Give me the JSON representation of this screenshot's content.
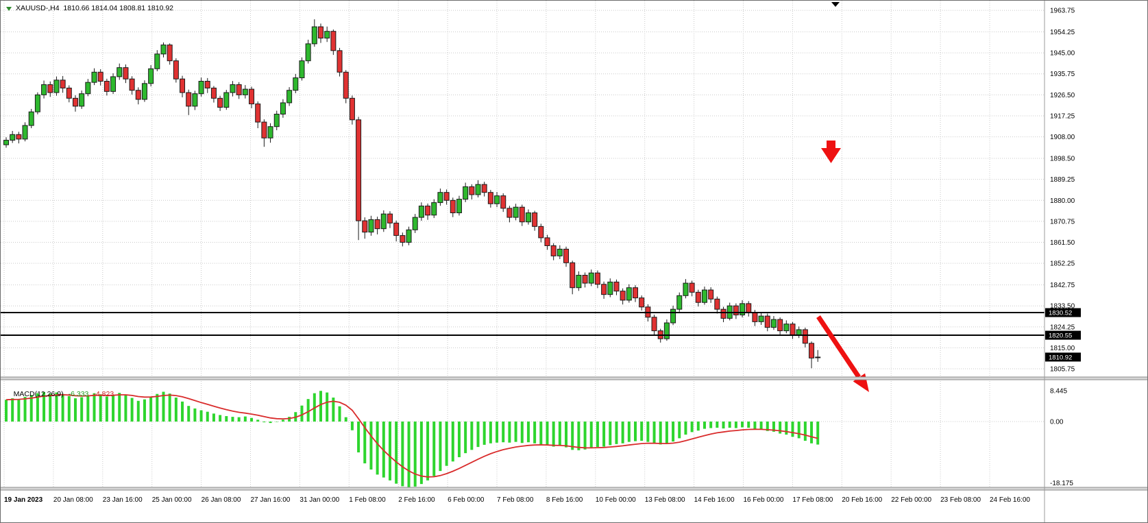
{
  "header": {
    "symbol_ohlc": "XAUUSD-,H4  1810.66 1814.04 1808.81 1810.92"
  },
  "macd_header": {
    "label": "MACD(12,26,9)",
    "value": "-6.333",
    "signal": "-4.823"
  },
  "colors": {
    "background": "#ffffff",
    "grid": "#c9c9c9",
    "bull": "#2eb82e",
    "bear": "#e03232",
    "candle_outline": "#1a1a1a",
    "macd_bar": "#2ed52e",
    "macd_signal": "#d92b2b",
    "level_line": "#000000",
    "tag_bg": "#000000",
    "tag_fg": "#ffffff",
    "annotation_arrow": "#ee1111",
    "axis_text": "#000000",
    "separator": "#d6d6d6",
    "separator_edge": "#8c8c8c",
    "axis_border": "#9b9b9b"
  },
  "chart_data": {
    "type": "candlestick",
    "symbol": "XAUUSD-",
    "timeframe": "H4",
    "current_ohlc": {
      "open": 1810.66,
      "high": 1814.04,
      "low": 1808.81,
      "close": 1810.92
    },
    "horizontal_lines": [
      1830.52,
      1820.55
    ],
    "price_tags": [
      "1830.52",
      "1820.55",
      "1810.92"
    ],
    "price_axis_ticks": [
      1963.75,
      1954.25,
      1945.0,
      1935.75,
      1926.5,
      1917.25,
      1908.0,
      1898.5,
      1889.25,
      1880.0,
      1870.75,
      1861.5,
      1852.25,
      1842.75,
      1833.5,
      1824.25,
      1815.0,
      1805.75
    ],
    "time_axis_ticks": [
      "19 Jan 2023",
      "20 Jan 08:00",
      "23 Jan 16:00",
      "25 Jan 00:00",
      "26 Jan 08:00",
      "27 Jan 16:00",
      "31 Jan 00:00",
      "1 Feb 08:00",
      "2 Feb 16:00",
      "6 Feb 00:00",
      "7 Feb 08:00",
      "8 Feb 16:00",
      "10 Feb 00:00",
      "13 Feb 08:00",
      "14 Feb 16:00",
      "16 Feb 00:00",
      "17 Feb 08:00",
      "20 Feb 16:00",
      "22 Feb 00:00",
      "23 Feb 08:00",
      "24 Feb 16:00"
    ],
    "candles": [
      [
        1904.5,
        1907.8,
        1903.2,
        1906.5
      ],
      [
        1906.5,
        1910.6,
        1905.3,
        1909.0
      ],
      [
        1909.0,
        1910.2,
        1905.1,
        1907.0
      ],
      [
        1907.0,
        1914.4,
        1906.0,
        1913.0
      ],
      [
        1913.0,
        1920.3,
        1911.8,
        1919.0
      ],
      [
        1919.0,
        1927.6,
        1917.9,
        1926.5
      ],
      [
        1926.5,
        1932.8,
        1924.9,
        1931.0
      ],
      [
        1931.0,
        1932.4,
        1925.6,
        1927.5
      ],
      [
        1927.5,
        1934.6,
        1926.1,
        1933.0
      ],
      [
        1933.0,
        1934.8,
        1927.4,
        1929.5
      ],
      [
        1929.5,
        1930.7,
        1923.2,
        1925.0
      ],
      [
        1925.0,
        1926.3,
        1919.1,
        1921.5
      ],
      [
        1921.5,
        1928.4,
        1920.3,
        1927.0
      ],
      [
        1927.0,
        1933.5,
        1925.9,
        1932.0
      ],
      [
        1932.0,
        1938.2,
        1930.8,
        1936.5
      ],
      [
        1936.5,
        1937.8,
        1930.6,
        1932.5
      ],
      [
        1932.5,
        1933.6,
        1926.2,
        1928.0
      ],
      [
        1928.0,
        1936.0,
        1926.9,
        1934.5
      ],
      [
        1934.5,
        1940.3,
        1933.1,
        1938.5
      ],
      [
        1938.5,
        1939.9,
        1931.7,
        1933.5
      ],
      [
        1933.5,
        1934.7,
        1926.6,
        1928.5
      ],
      [
        1928.5,
        1929.8,
        1922.3,
        1924.5
      ],
      [
        1924.5,
        1932.9,
        1923.4,
        1931.5
      ],
      [
        1931.5,
        1939.6,
        1930.2,
        1938.0
      ],
      [
        1938.0,
        1946.2,
        1936.9,
        1944.5
      ],
      [
        1944.5,
        1949.6,
        1943.0,
        1948.5
      ],
      [
        1948.5,
        1949.2,
        1939.8,
        1941.5
      ],
      [
        1941.5,
        1942.6,
        1931.9,
        1933.5
      ],
      [
        1933.5,
        1934.9,
        1925.4,
        1927.5
      ],
      [
        1927.5,
        1928.8,
        1917.6,
        1921.5
      ],
      [
        1921.5,
        1928.3,
        1919.8,
        1927.0
      ],
      [
        1927.0,
        1934.1,
        1925.7,
        1932.5
      ],
      [
        1932.5,
        1933.9,
        1927.3,
        1929.5
      ],
      [
        1929.5,
        1930.4,
        1923.1,
        1925.0
      ],
      [
        1925.0,
        1926.1,
        1919.4,
        1921.0
      ],
      [
        1921.0,
        1928.7,
        1919.9,
        1927.5
      ],
      [
        1927.5,
        1932.6,
        1925.8,
        1931.0
      ],
      [
        1931.0,
        1932.1,
        1924.7,
        1926.5
      ],
      [
        1926.5,
        1930.8,
        1924.9,
        1929.0
      ],
      [
        1929.0,
        1930.1,
        1920.6,
        1922.5
      ],
      [
        1922.5,
        1923.6,
        1911.8,
        1914.5
      ],
      [
        1914.5,
        1915.7,
        1903.6,
        1907.5
      ],
      [
        1907.5,
        1914.0,
        1905.4,
        1912.5
      ],
      [
        1912.5,
        1919.5,
        1910.9,
        1918.0
      ],
      [
        1918.0,
        1924.6,
        1916.4,
        1923.0
      ],
      [
        1923.0,
        1929.9,
        1921.6,
        1928.5
      ],
      [
        1928.5,
        1935.7,
        1927.2,
        1934.0
      ],
      [
        1934.0,
        1943.0,
        1932.8,
        1941.5
      ],
      [
        1941.5,
        1950.8,
        1940.3,
        1949.0
      ],
      [
        1949.0,
        1959.8,
        1947.7,
        1956.5
      ],
      [
        1956.5,
        1957.9,
        1949.4,
        1951.5
      ],
      [
        1951.5,
        1956.6,
        1949.8,
        1954.5
      ],
      [
        1954.5,
        1955.3,
        1944.1,
        1946.0
      ],
      [
        1946.0,
        1947.2,
        1934.6,
        1936.5
      ],
      [
        1936.5,
        1937.4,
        1922.8,
        1925.0
      ],
      [
        1925.0,
        1926.2,
        1913.4,
        1915.5
      ],
      [
        1915.5,
        1916.8,
        1862.5,
        1871.0
      ],
      [
        1871.0,
        1872.5,
        1863.1,
        1866.0
      ],
      [
        1866.0,
        1873.2,
        1864.4,
        1871.5
      ],
      [
        1871.5,
        1872.8,
        1865.0,
        1867.5
      ],
      [
        1867.5,
        1875.6,
        1866.1,
        1874.0
      ],
      [
        1874.0,
        1875.2,
        1867.8,
        1870.0
      ],
      [
        1870.0,
        1871.1,
        1861.9,
        1864.5
      ],
      [
        1864.5,
        1865.8,
        1859.7,
        1861.5
      ],
      [
        1861.5,
        1868.4,
        1860.2,
        1867.0
      ],
      [
        1867.0,
        1874.0,
        1865.6,
        1872.5
      ],
      [
        1872.5,
        1879.1,
        1871.0,
        1877.5
      ],
      [
        1877.5,
        1878.6,
        1871.4,
        1873.5
      ],
      [
        1873.5,
        1880.5,
        1872.2,
        1879.0
      ],
      [
        1879.0,
        1885.2,
        1877.6,
        1883.5
      ],
      [
        1883.5,
        1884.8,
        1878.1,
        1880.0
      ],
      [
        1880.0,
        1881.2,
        1872.6,
        1874.5
      ],
      [
        1874.5,
        1882.0,
        1873.3,
        1880.5
      ],
      [
        1880.5,
        1887.8,
        1879.2,
        1886.0
      ],
      [
        1886.0,
        1887.1,
        1880.4,
        1882.5
      ],
      [
        1882.5,
        1888.9,
        1881.3,
        1887.0
      ],
      [
        1887.0,
        1888.2,
        1881.7,
        1883.5
      ],
      [
        1883.5,
        1884.6,
        1876.8,
        1878.5
      ],
      [
        1878.5,
        1883.7,
        1877.0,
        1882.0
      ],
      [
        1882.0,
        1883.1,
        1874.9,
        1876.5
      ],
      [
        1876.5,
        1877.6,
        1870.3,
        1872.5
      ],
      [
        1872.5,
        1878.5,
        1871.2,
        1877.0
      ],
      [
        1877.0,
        1878.1,
        1868.7,
        1870.5
      ],
      [
        1870.5,
        1876.0,
        1869.3,
        1874.5
      ],
      [
        1874.5,
        1875.4,
        1866.6,
        1868.5
      ],
      [
        1868.5,
        1869.7,
        1861.5,
        1863.5
      ],
      [
        1863.5,
        1864.8,
        1858.2,
        1860.0
      ],
      [
        1860.0,
        1861.1,
        1853.6,
        1855.5
      ],
      [
        1855.5,
        1860.2,
        1854.1,
        1858.5
      ],
      [
        1858.5,
        1859.6,
        1850.7,
        1852.5
      ],
      [
        1852.5,
        1853.4,
        1838.6,
        1841.5
      ],
      [
        1841.5,
        1848.7,
        1840.1,
        1847.0
      ],
      [
        1847.0,
        1848.2,
        1841.6,
        1843.5
      ],
      [
        1843.5,
        1849.5,
        1842.2,
        1848.0
      ],
      [
        1848.0,
        1849.1,
        1841.3,
        1843.0
      ],
      [
        1843.0,
        1844.2,
        1836.6,
        1838.5
      ],
      [
        1838.5,
        1845.6,
        1837.3,
        1844.0
      ],
      [
        1844.0,
        1845.1,
        1838.2,
        1840.0
      ],
      [
        1840.0,
        1841.2,
        1834.1,
        1836.0
      ],
      [
        1836.0,
        1843.0,
        1834.9,
        1841.5
      ],
      [
        1841.5,
        1842.6,
        1835.2,
        1837.0
      ],
      [
        1837.0,
        1838.1,
        1831.4,
        1833.0
      ],
      [
        1833.0,
        1834.2,
        1826.6,
        1828.5
      ],
      [
        1828.5,
        1829.6,
        1820.8,
        1822.5
      ],
      [
        1822.5,
        1823.4,
        1817.3,
        1819.0
      ],
      [
        1819.0,
        1827.5,
        1818.1,
        1826.0
      ],
      [
        1826.0,
        1833.6,
        1825.0,
        1832.0
      ],
      [
        1832.0,
        1839.4,
        1830.9,
        1838.0
      ],
      [
        1838.0,
        1845.3,
        1836.8,
        1843.5
      ],
      [
        1843.5,
        1844.6,
        1837.7,
        1839.5
      ],
      [
        1839.5,
        1840.6,
        1833.2,
        1835.0
      ],
      [
        1835.0,
        1842.0,
        1834.0,
        1840.5
      ],
      [
        1840.5,
        1841.7,
        1834.8,
        1836.5
      ],
      [
        1836.5,
        1837.6,
        1830.1,
        1832.0
      ],
      [
        1832.0,
        1833.1,
        1826.3,
        1828.0
      ],
      [
        1828.0,
        1834.9,
        1827.1,
        1833.5
      ],
      [
        1833.5,
        1834.6,
        1827.7,
        1829.5
      ],
      [
        1829.5,
        1836.0,
        1828.4,
        1834.5
      ],
      [
        1834.5,
        1835.6,
        1828.8,
        1830.5
      ],
      [
        1830.5,
        1831.7,
        1824.6,
        1826.5
      ],
      [
        1826.5,
        1830.6,
        1825.1,
        1829.0
      ],
      [
        1829.0,
        1830.1,
        1822.3,
        1824.0
      ],
      [
        1824.0,
        1829.0,
        1822.9,
        1827.5
      ],
      [
        1827.5,
        1828.4,
        1820.9,
        1822.5
      ],
      [
        1822.5,
        1827.1,
        1821.4,
        1825.5
      ],
      [
        1825.5,
        1826.4,
        1818.9,
        1820.5
      ],
      [
        1820.5,
        1824.4,
        1819.3,
        1823.0
      ],
      [
        1823.0,
        1823.9,
        1815.2,
        1817.0
      ],
      [
        1817.0,
        1817.8,
        1806.0,
        1810.5
      ],
      [
        1810.66,
        1814.04,
        1808.81,
        1810.92
      ]
    ],
    "indicator": {
      "type": "MACD",
      "params": [
        12,
        26,
        9
      ],
      "value": -6.333,
      "signal_value": -4.823,
      "scale_tick_labels": [
        "8.445",
        "0.00",
        "-18.175"
      ],
      "histogram": [
        6.0,
        6.4,
        6.2,
        6.8,
        7.3,
        7.8,
        8.1,
        7.7,
        8.0,
        7.6,
        7.0,
        6.4,
        6.7,
        7.2,
        7.8,
        7.5,
        6.9,
        7.3,
        7.9,
        7.4,
        6.5,
        5.7,
        6.1,
        6.8,
        7.6,
        8.2,
        7.7,
        6.6,
        5.5,
        4.3,
        3.6,
        3.1,
        2.7,
        2.2,
        1.8,
        1.5,
        1.3,
        1.2,
        1.4,
        1.0,
        0.5,
        -0.2,
        -0.4,
        -0.1,
        0.5,
        1.3,
        2.6,
        4.4,
        6.2,
        7.8,
        8.445,
        8.0,
        6.6,
        4.2,
        1.2,
        -2.4,
        -8.5,
        -11.5,
        -13.2,
        -14.6,
        -15.4,
        -16.2,
        -17.1,
        -17.8,
        -18.175,
        -17.9,
        -17.2,
        -16.2,
        -15.0,
        -13.6,
        -12.2,
        -11.0,
        -9.8,
        -8.7,
        -7.8,
        -7.0,
        -6.4,
        -6.0,
        -5.8,
        -5.7,
        -5.8,
        -5.6,
        -5.9,
        -5.7,
        -6.0,
        -6.3,
        -6.6,
        -6.9,
        -6.7,
        -7.1,
        -7.8,
        -7.9,
        -7.7,
        -7.3,
        -7.0,
        -6.9,
        -6.5,
        -6.2,
        -6.0,
        -5.6,
        -5.4,
        -5.3,
        -5.6,
        -6.0,
        -6.3,
        -6.1,
        -5.5,
        -4.6,
        -3.6,
        -2.9,
        -2.5,
        -2.0,
        -1.8,
        -1.7,
        -1.9,
        -1.7,
        -1.8,
        -1.6,
        -1.7,
        -2.0,
        -2.2,
        -2.6,
        -2.8,
        -3.3,
        -3.6,
        -4.2,
        -4.6,
        -5.3,
        -6.0,
        -6.333
      ]
    }
  }
}
